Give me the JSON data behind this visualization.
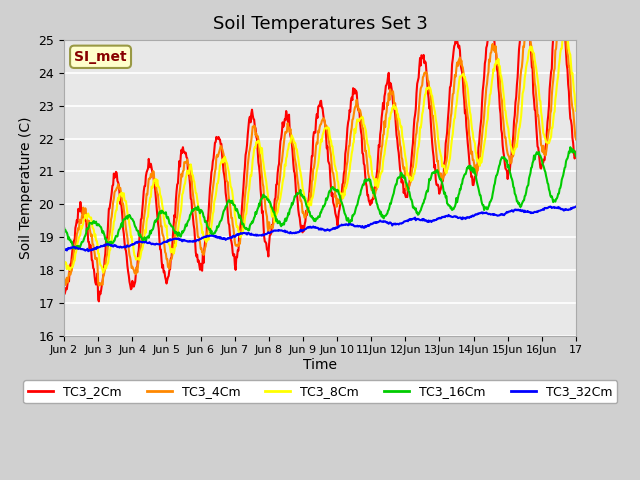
{
  "title": "Soil Temperatures Set 3",
  "xlabel": "Time",
  "ylabel": "Soil Temperature (C)",
  "ylim": [
    16.0,
    25.0
  ],
  "yticks": [
    16.0,
    17.0,
    18.0,
    19.0,
    20.0,
    21.0,
    22.0,
    23.0,
    24.0,
    25.0
  ],
  "xtick_labels": [
    "Jun 2",
    "Jun 3",
    "Jun 4",
    "Jun 5",
    "Jun 6",
    "Jun 7",
    "Jun 8",
    "Jun 9",
    "Jun 10",
    "11Jun",
    "12Jun",
    "13Jun",
    "14Jun",
    "15Jun",
    "16Jun",
    "17"
  ],
  "legend_labels": [
    "TC3_2Cm",
    "TC3_4Cm",
    "TC3_8Cm",
    "TC3_16Cm",
    "TC3_32Cm"
  ],
  "line_colors": [
    "#ff0000",
    "#ff8800",
    "#ffff00",
    "#00cc00",
    "#0000ff"
  ],
  "line_widths": [
    1.5,
    1.5,
    1.5,
    1.5,
    1.5
  ],
  "annotation_text": "SI_met",
  "annotation_bg": "#ffffcc",
  "annotation_border": "#999944",
  "title_fontsize": 13,
  "axis_fontsize": 10
}
